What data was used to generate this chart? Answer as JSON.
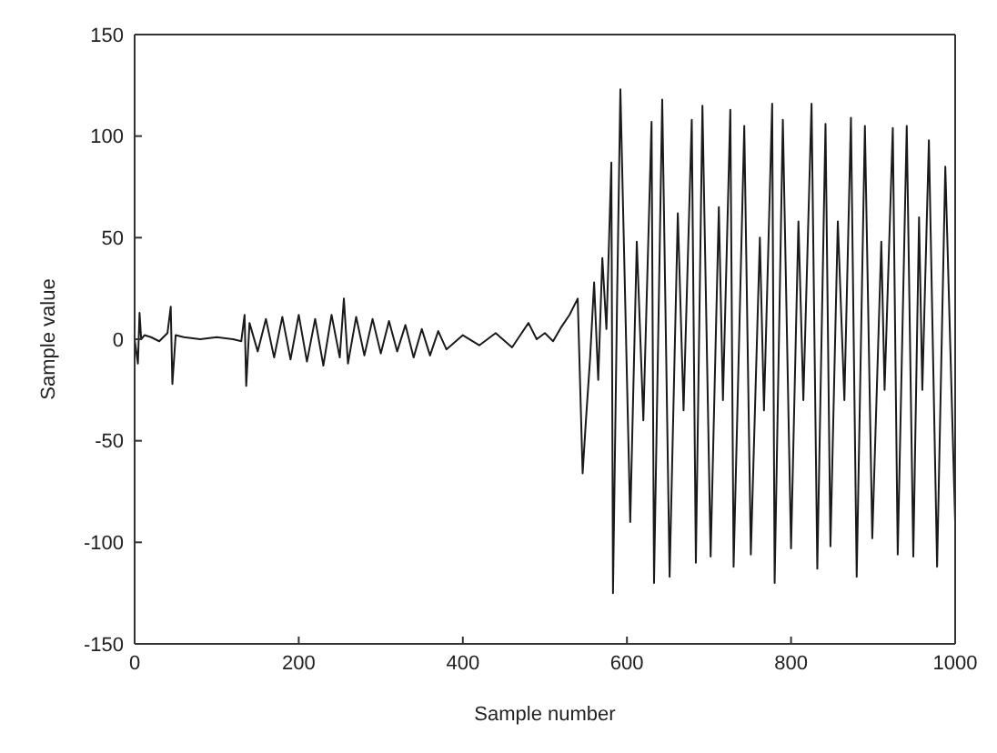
{
  "chart_data": {
    "type": "line",
    "xlabel": "Sample number",
    "ylabel": "Sample value",
    "xlim": [
      0,
      1000
    ],
    "ylim": [
      -150,
      150
    ],
    "xticks": [
      0,
      200,
      400,
      600,
      800,
      1000
    ],
    "yticks": [
      -150,
      -100,
      -50,
      0,
      50,
      100,
      150
    ],
    "marker": "none",
    "line_style": "solid",
    "series": [
      {
        "color": "#1a1a1a",
        "x": [
          0,
          4,
          6,
          8,
          12,
          20,
          30,
          40,
          44,
          46,
          50,
          60,
          80,
          100,
          120,
          130,
          134,
          136,
          140,
          150,
          160,
          170,
          180,
          190,
          200,
          210,
          220,
          230,
          240,
          250,
          255,
          260,
          270,
          280,
          290,
          300,
          310,
          320,
          330,
          340,
          350,
          360,
          370,
          380,
          400,
          420,
          440,
          460,
          470,
          480,
          490,
          500,
          510,
          520,
          530,
          540,
          546,
          550,
          555,
          560,
          565,
          570,
          575,
          581,
          583,
          588,
          592,
          604,
          612,
          620,
          630,
          633,
          643,
          652,
          662,
          669,
          679,
          684,
          692,
          702,
          712,
          717,
          726,
          730,
          743,
          751,
          762,
          767,
          777,
          780,
          790,
          800,
          809,
          815,
          825,
          832,
          842,
          848,
          857,
          865,
          873,
          880,
          890,
          899,
          910,
          914,
          924,
          930,
          941,
          949,
          956,
          960,
          968,
          978,
          988,
          1000
        ],
        "values": [
          0,
          -12,
          13,
          0,
          2,
          1,
          -1,
          3,
          16,
          -22,
          2,
          1,
          0,
          1,
          0,
          -1,
          12,
          -23,
          8,
          -6,
          10,
          -9,
          11,
          -10,
          12,
          -11,
          10,
          -13,
          12,
          -9,
          20,
          -12,
          11,
          -8,
          10,
          -7,
          9,
          -6,
          7,
          -9,
          5,
          -8,
          4,
          -5,
          2,
          -3,
          3,
          -4,
          2,
          8,
          0,
          3,
          -1,
          6,
          12,
          20,
          -66,
          -40,
          -10,
          28,
          -20,
          40,
          5,
          87,
          -125,
          20,
          123,
          -90,
          48,
          -40,
          107,
          -120,
          118,
          -117,
          62,
          -35,
          108,
          -110,
          115,
          -107,
          65,
          -30,
          113,
          -112,
          105,
          -106,
          50,
          -35,
          116,
          -120,
          108,
          -103,
          58,
          -30,
          116,
          -113,
          106,
          -102,
          58,
          -30,
          109,
          -117,
          105,
          -98,
          48,
          -25,
          104,
          -106,
          105,
          -107,
          60,
          -25,
          98,
          -112,
          85,
          -90
        ]
      }
    ]
  }
}
